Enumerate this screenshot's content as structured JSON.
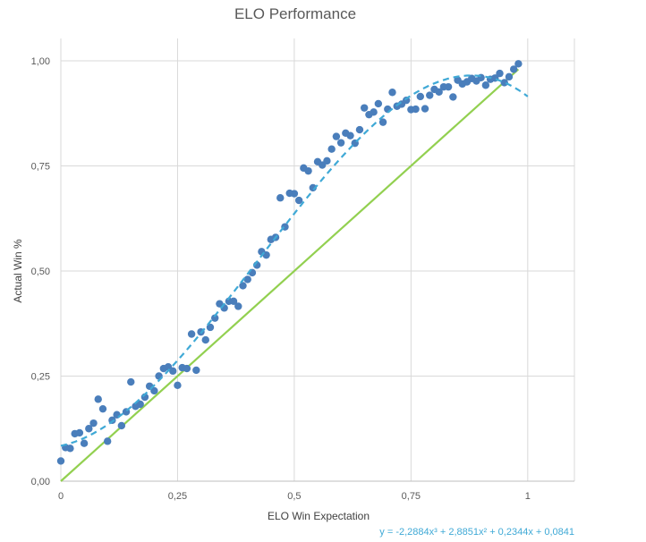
{
  "chart_data": {
    "type": "scatter",
    "title": "ELO Performance",
    "xlabel": "ELO Win Expectation",
    "ylabel": "Actual Win %",
    "xlim": [
      0,
      1.1
    ],
    "ylim": [
      0,
      1.0
    ],
    "xticks": [
      0,
      0.25,
      0.5,
      0.75,
      1
    ],
    "xtick_labels": [
      "0",
      "0,25",
      "0,5",
      "0,75",
      "1"
    ],
    "yticks": [
      0,
      0.25,
      0.5,
      0.75,
      1.0
    ],
    "ytick_labels": [
      "0,00",
      "0,25",
      "0,50",
      "0,75",
      "1,00"
    ],
    "grid": true,
    "colors": {
      "points": "#4a7ebb",
      "trendline": "#3fa9d6",
      "reference": "#92d050",
      "equation": "#3fa9d6"
    },
    "trendline": {
      "type": "polynomial",
      "coefficients": [
        0.0841,
        0.2344,
        2.8851,
        -2.2884
      ],
      "equation_text": "y = -2,2884x³ + 2,8851x² + 0,2344x + 0,0841"
    },
    "reference_line": {
      "x": [
        0,
        0.98
      ],
      "y": [
        0,
        0.98
      ]
    },
    "series": [
      {
        "points": [
          [
            0.0,
            0.048
          ],
          [
            0.01,
            0.08
          ],
          [
            0.02,
            0.078
          ],
          [
            0.03,
            0.113
          ],
          [
            0.04,
            0.115
          ],
          [
            0.05,
            0.09
          ],
          [
            0.06,
            0.125
          ],
          [
            0.07,
            0.138
          ],
          [
            0.08,
            0.195
          ],
          [
            0.09,
            0.172
          ],
          [
            0.1,
            0.095
          ],
          [
            0.11,
            0.145
          ],
          [
            0.12,
            0.158
          ],
          [
            0.13,
            0.132
          ],
          [
            0.14,
            0.165
          ],
          [
            0.15,
            0.236
          ],
          [
            0.16,
            0.178
          ],
          [
            0.17,
            0.183
          ],
          [
            0.18,
            0.2
          ],
          [
            0.19,
            0.226
          ],
          [
            0.2,
            0.215
          ],
          [
            0.21,
            0.25
          ],
          [
            0.22,
            0.268
          ],
          [
            0.23,
            0.272
          ],
          [
            0.24,
            0.262
          ],
          [
            0.25,
            0.228
          ],
          [
            0.26,
            0.27
          ],
          [
            0.27,
            0.268
          ],
          [
            0.28,
            0.35
          ],
          [
            0.29,
            0.264
          ],
          [
            0.3,
            0.355
          ],
          [
            0.31,
            0.336
          ],
          [
            0.32,
            0.366
          ],
          [
            0.33,
            0.388
          ],
          [
            0.34,
            0.422
          ],
          [
            0.35,
            0.412
          ],
          [
            0.36,
            0.428
          ],
          [
            0.37,
            0.428
          ],
          [
            0.38,
            0.416
          ],
          [
            0.39,
            0.465
          ],
          [
            0.4,
            0.48
          ],
          [
            0.41,
            0.496
          ],
          [
            0.42,
            0.514
          ],
          [
            0.43,
            0.546
          ],
          [
            0.44,
            0.538
          ],
          [
            0.45,
            0.575
          ],
          [
            0.46,
            0.58
          ],
          [
            0.47,
            0.674
          ],
          [
            0.48,
            0.605
          ],
          [
            0.49,
            0.685
          ],
          [
            0.5,
            0.684
          ],
          [
            0.51,
            0.668
          ],
          [
            0.52,
            0.745
          ],
          [
            0.53,
            0.738
          ],
          [
            0.54,
            0.698
          ],
          [
            0.55,
            0.76
          ],
          [
            0.56,
            0.752
          ],
          [
            0.57,
            0.762
          ],
          [
            0.58,
            0.79
          ],
          [
            0.59,
            0.82
          ],
          [
            0.6,
            0.805
          ],
          [
            0.61,
            0.828
          ],
          [
            0.62,
            0.822
          ],
          [
            0.63,
            0.804
          ],
          [
            0.64,
            0.836
          ],
          [
            0.65,
            0.888
          ],
          [
            0.66,
            0.872
          ],
          [
            0.67,
            0.878
          ],
          [
            0.68,
            0.898
          ],
          [
            0.69,
            0.854
          ],
          [
            0.7,
            0.885
          ],
          [
            0.71,
            0.925
          ],
          [
            0.72,
            0.892
          ],
          [
            0.73,
            0.897
          ],
          [
            0.74,
            0.906
          ],
          [
            0.75,
            0.884
          ],
          [
            0.76,
            0.885
          ],
          [
            0.77,
            0.915
          ],
          [
            0.78,
            0.886
          ],
          [
            0.79,
            0.918
          ],
          [
            0.8,
            0.932
          ],
          [
            0.81,
            0.926
          ],
          [
            0.82,
            0.938
          ],
          [
            0.83,
            0.938
          ],
          [
            0.84,
            0.914
          ],
          [
            0.85,
            0.954
          ],
          [
            0.86,
            0.945
          ],
          [
            0.87,
            0.95
          ],
          [
            0.88,
            0.958
          ],
          [
            0.89,
            0.952
          ],
          [
            0.9,
            0.96
          ],
          [
            0.91,
            0.942
          ],
          [
            0.92,
            0.956
          ],
          [
            0.93,
            0.959
          ],
          [
            0.94,
            0.97
          ],
          [
            0.95,
            0.948
          ],
          [
            0.96,
            0.962
          ],
          [
            0.97,
            0.98
          ],
          [
            0.98,
            0.993
          ]
        ]
      }
    ]
  }
}
